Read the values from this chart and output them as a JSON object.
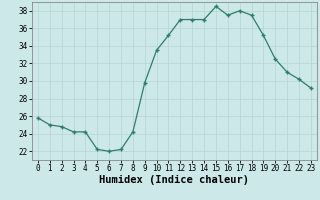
{
  "x": [
    0,
    1,
    2,
    3,
    4,
    5,
    6,
    7,
    8,
    9,
    10,
    11,
    12,
    13,
    14,
    15,
    16,
    17,
    18,
    19,
    20,
    21,
    22,
    23
  ],
  "y": [
    25.8,
    25.0,
    24.8,
    24.2,
    24.2,
    22.2,
    22.0,
    22.2,
    24.2,
    29.8,
    33.5,
    35.2,
    37.0,
    37.0,
    37.0,
    38.5,
    37.5,
    38.0,
    37.5,
    35.2,
    32.5,
    31.0,
    30.2,
    29.2
  ],
  "xlim": [
    -0.5,
    23.5
  ],
  "ylim": [
    21,
    39
  ],
  "yticks": [
    22,
    24,
    26,
    28,
    30,
    32,
    34,
    36,
    38
  ],
  "xticks": [
    0,
    1,
    2,
    3,
    4,
    5,
    6,
    7,
    8,
    9,
    10,
    11,
    12,
    13,
    14,
    15,
    16,
    17,
    18,
    19,
    20,
    21,
    22,
    23
  ],
  "xlabel": "Humidex (Indice chaleur)",
  "line_color": "#2e7d6e",
  "marker": "+",
  "background_color": "#cce8e8",
  "grid_color": "#b8d8d8",
  "tick_fontsize": 5.5,
  "xlabel_fontsize": 7.5
}
